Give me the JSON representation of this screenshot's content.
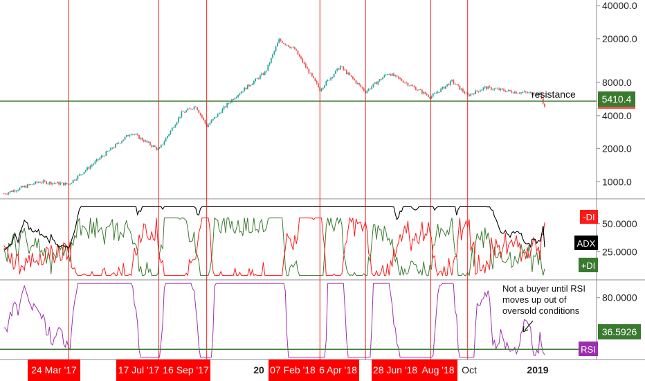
{
  "chart_data": {
    "type": "line",
    "instrument_panel": {
      "type": "candlestick",
      "y_scale": "log",
      "ylim": [
        700,
        45000
      ],
      "y_ticks": [
        "40000.0",
        "20000.0",
        "8000.0",
        "4000.0",
        "2000.0",
        "1000.0"
      ],
      "y_tick_values": [
        40000,
        20000,
        8000,
        4000,
        2000,
        1000
      ],
      "price_path_x": [
        "2017-01-01",
        "2017-02-15",
        "2017-03-24",
        "2017-05-10",
        "2017-06-12",
        "2017-07-17",
        "2017-08-15",
        "2017-09-02",
        "2017-09-16",
        "2017-10-20",
        "2017-11-30",
        "2017-12-17",
        "2018-01-06",
        "2018-02-07",
        "2018-03-05",
        "2018-04-06",
        "2018-05-05",
        "2018-06-28",
        "2018-07-25",
        "2018-08-14",
        "2018-09-05",
        "2018-10-10",
        "2018-11-14",
        "2018-11-20"
      ],
      "price_path_y": [
        780,
        1000,
        950,
        1800,
        2800,
        1950,
        4200,
        4900,
        3200,
        5800,
        10000,
        19500,
        16000,
        6900,
        11200,
        6600,
        9800,
        5900,
        8200,
        6100,
        7200,
        6600,
        6300,
        4800
      ],
      "hline_value": 5410.4,
      "hline_label": "resistance",
      "last_value_tag": "5410.4"
    },
    "dmi_panel": {
      "ylim": [
        0,
        72
      ],
      "y_ticks": [
        "50.0000",
        "25.0000"
      ],
      "y_tick_values": [
        50,
        25
      ],
      "series": [
        {
          "name": "-DI",
          "color": "#ff1a1a",
          "tag": "-DI"
        },
        {
          "name": "ADX",
          "color": "#000000",
          "tag": "ADX"
        },
        {
          "name": "+DI",
          "color": "#3a7a30",
          "tag": "+DI"
        }
      ]
    },
    "rsi_panel": {
      "ylim": [
        28,
        95
      ],
      "y_ticks": [
        "80.0000"
      ],
      "y_tick_values": [
        80
      ],
      "hline_value": 36.5926,
      "last_value_tag": "36.5926",
      "tag": "RSI",
      "series_color": "#9c2fb0"
    },
    "vertical_lines": [
      {
        "date": "2017-03-24",
        "label": "24 Mar '17"
      },
      {
        "date": "2017-07-17",
        "label": "17 Jul '17"
      },
      {
        "date": "2017-09-16",
        "label": "16 Sep '17"
      },
      {
        "date": "2018-02-07",
        "label": "07 Feb '18"
      },
      {
        "date": "2018-04-06",
        "label": "6 Apr '18"
      },
      {
        "date": "2018-06-28",
        "label": "28 Jun '18"
      },
      {
        "date": "2018-08-14",
        "label": "Aug '18"
      }
    ],
    "x_axis_labels": [
      "20",
      "Oct",
      "2019"
    ],
    "annotation": [
      "Not a buyer until RSI",
      "moves up out of",
      "oversold conditions"
    ],
    "colors": {
      "up_candle": "#26a69a",
      "down_candle": "#ef5350",
      "hline": "#3a7a30",
      "vline": "#ff0000",
      "date_tag_bg": "#ff0000",
      "price_tag_bg": "#3a7a30"
    },
    "x_range": [
      "2016-12-27",
      "2019-01-25"
    ]
  }
}
